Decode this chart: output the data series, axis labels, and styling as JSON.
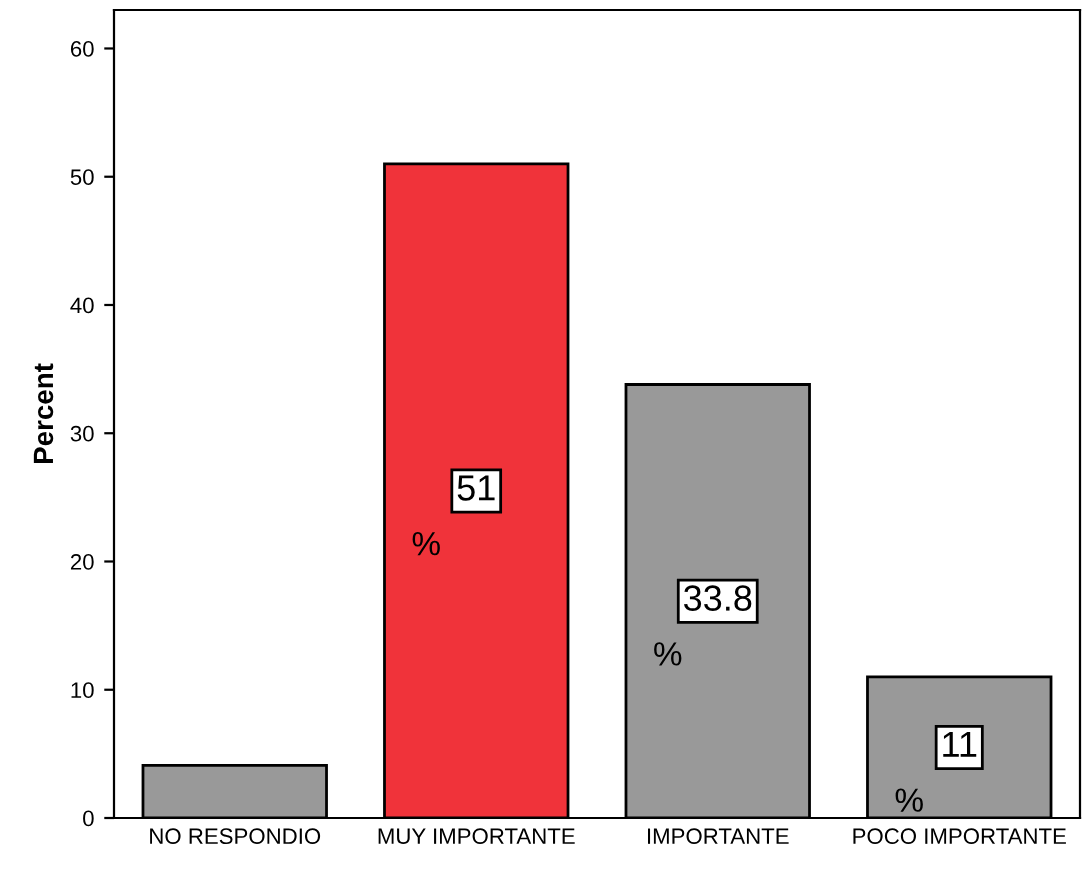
{
  "chart_data": {
    "type": "bar",
    "ylabel": "Percent",
    "categories": [
      "NO RESPONDIO",
      "MUY IMPORTANTE",
      "IMPORTANTE",
      "POCO IMPORTANTE"
    ],
    "values": [
      4.1,
      51,
      33.8,
      11
    ],
    "colors": [
      "#999999",
      "#f0333a",
      "#999999",
      "#999999"
    ],
    "value_labels": [
      null,
      "51",
      "33.8",
      "11"
    ],
    "annotations": [
      "%",
      "%",
      "%"
    ],
    "ylim": [
      0,
      63
    ],
    "yticks": [
      0,
      10,
      20,
      30,
      40,
      50,
      60
    ],
    "grid": false,
    "legend": false
  }
}
